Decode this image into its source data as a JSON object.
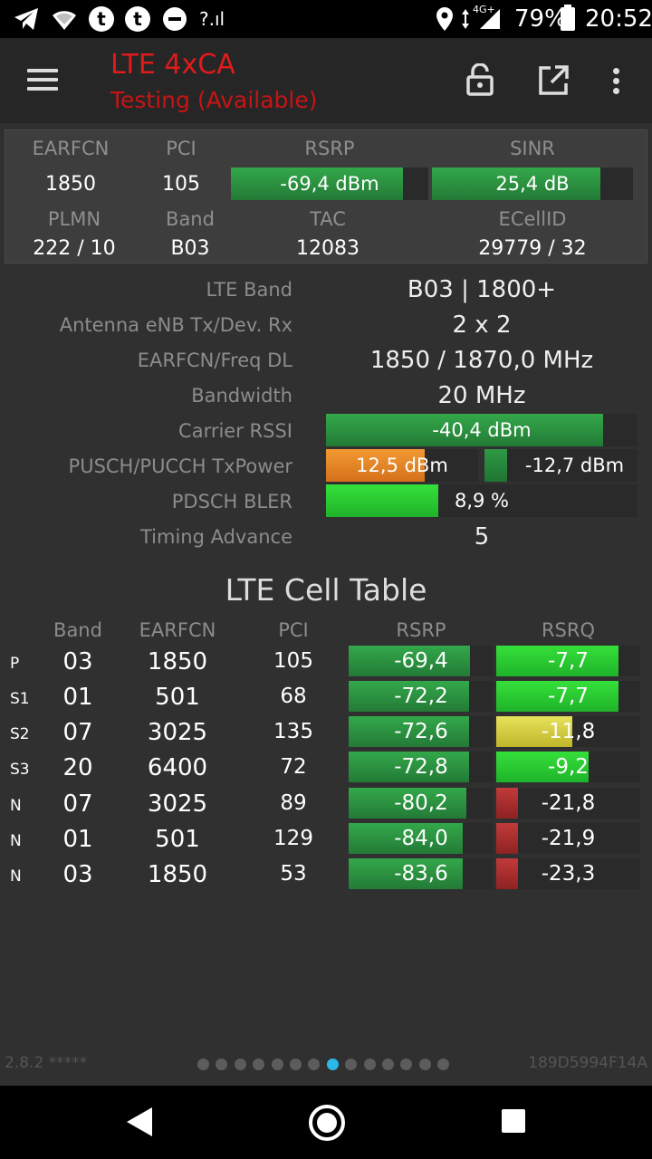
{
  "status_bar": {
    "battery": "79%",
    "time": "20:52",
    "network": "4G+",
    "network_tag": "?.ıl",
    "notif_icons": [
      "telegram-icon",
      "wifi-icon",
      "t-app-icon",
      "t-app-icon",
      "minus-circle-icon"
    ]
  },
  "app_bar": {
    "title": "LTE 4xCA",
    "subtitle": "Testing (Available)"
  },
  "summary": {
    "headers1": [
      "EARFCN",
      "PCI",
      "RSRP",
      "SINR"
    ],
    "earfcn": "1850",
    "pci": "105",
    "rsrp": {
      "text": "-69,4 dBm",
      "fill": 0.87
    },
    "sinr": {
      "text": "25,4 dB",
      "fill": 0.84
    },
    "headers2": [
      "PLMN",
      "Band",
      "TAC",
      "ECellID"
    ],
    "plmn": "222 / 10",
    "band": "B03",
    "tac": "12083",
    "ecellid": "29779 / 32"
  },
  "details": {
    "lte_band": {
      "label": "LTE Band",
      "value": "B03 | 1800+"
    },
    "antenna": {
      "label": "Antenna eNB Tx/Dev. Rx",
      "value": "2 x 2"
    },
    "earfcn_freq": {
      "label": "EARFCN/Freq DL",
      "value": "1850 / 1870,0 MHz"
    },
    "bandwidth": {
      "label": "Bandwidth",
      "value": "20 MHz"
    },
    "carrier_rssi": {
      "label": "Carrier RSSI",
      "value": "-40,4 dBm",
      "fill": 0.89
    },
    "txpower": {
      "label": "PUSCH/PUCCH TxPower",
      "pusch": "12,5 dBm",
      "pusch_fill": 0.65,
      "pucch": "-12,7 dBm",
      "pucch_fill": 0.15
    },
    "bler": {
      "label": "PDSCH BLER",
      "value": "8,9 %",
      "fill": 0.36
    },
    "timing_advance": {
      "label": "Timing Advance",
      "value": "5"
    }
  },
  "cell_table": {
    "title": "LTE Cell Table",
    "headers": {
      "band": "Band",
      "earfcn": "EARFCN",
      "pci": "PCI",
      "rsrp": "RSRP",
      "rsrq": "RSRQ"
    },
    "rows": [
      {
        "type": "P",
        "band": "03",
        "earfcn": "1850",
        "pci": "105",
        "rsrp": "-69,4",
        "rsrp_fill": 0.84,
        "rsrq": "-7,7",
        "rsrq_fill": 0.85,
        "rsrq_color": "bright"
      },
      {
        "type": "S1",
        "band": "01",
        "earfcn": "501",
        "pci": "68",
        "rsrp": "-72,2",
        "rsrp_fill": 0.83,
        "rsrq": "-7,7",
        "rsrq_fill": 0.85,
        "rsrq_color": "bright"
      },
      {
        "type": "S2",
        "band": "07",
        "earfcn": "3025",
        "pci": "135",
        "rsrp": "-72,6",
        "rsrp_fill": 0.83,
        "rsrq": "-11,8",
        "rsrq_fill": 0.53,
        "rsrq_color": "yellow"
      },
      {
        "type": "S3",
        "band": "20",
        "earfcn": "6400",
        "pci": "72",
        "rsrp": "-72,8",
        "rsrp_fill": 0.83,
        "rsrq": "-9,2",
        "rsrq_fill": 0.64,
        "rsrq_color": "bright"
      },
      {
        "type": "N",
        "band": "07",
        "earfcn": "3025",
        "pci": "89",
        "rsrp": "-80,2",
        "rsrp_fill": 0.81,
        "rsrq": "-21,8",
        "rsrq_fill": 0.15,
        "rsrq_color": "red"
      },
      {
        "type": "N",
        "band": "01",
        "earfcn": "501",
        "pci": "129",
        "rsrp": "-84,0",
        "rsrp_fill": 0.79,
        "rsrq": "-21,9",
        "rsrq_fill": 0.15,
        "rsrq_color": "red"
      },
      {
        "type": "N",
        "band": "03",
        "earfcn": "1850",
        "pci": "53",
        "rsrp": "-83,6",
        "rsrp_fill": 0.79,
        "rsrq": "-23,3",
        "rsrq_fill": 0.15,
        "rsrq_color": "red"
      }
    ]
  },
  "footer": {
    "version": "2.8.2 *****",
    "device_id": "189D5994F14A",
    "page_count": 14,
    "active_page": 7
  },
  "nav_bar": {
    "buttons": [
      "back-icon",
      "home-icon",
      "recents-icon"
    ]
  }
}
